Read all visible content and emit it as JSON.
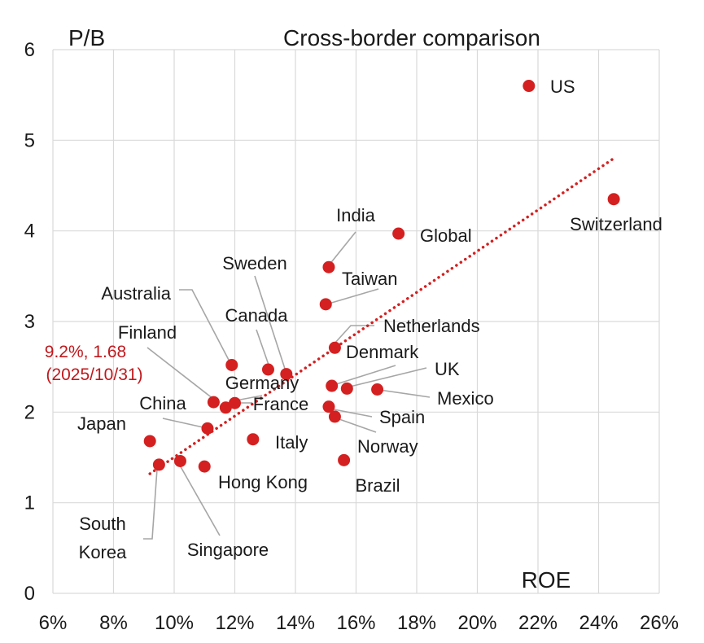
{
  "chart_data": {
    "type": "scatter",
    "title": "Cross-border comparison",
    "xlabel": "ROE",
    "ylabel": "P/B",
    "xlim": [
      0.06,
      0.26
    ],
    "ylim": [
      0,
      6
    ],
    "x_ticks": [
      {
        "value": 0.06,
        "label": "6%"
      },
      {
        "value": 0.08,
        "label": "8%"
      },
      {
        "value": 0.1,
        "label": "10%"
      },
      {
        "value": 0.12,
        "label": "12%"
      },
      {
        "value": 0.14,
        "label": "14%"
      },
      {
        "value": 0.16,
        "label": "16%"
      },
      {
        "value": 0.18,
        "label": "18%"
      },
      {
        "value": 0.2,
        "label": "20%"
      },
      {
        "value": 0.22,
        "label": "22%"
      },
      {
        "value": 0.24,
        "label": "24%"
      },
      {
        "value": 0.26,
        "label": "26%"
      }
    ],
    "y_ticks": [
      {
        "value": 0,
        "label": "0"
      },
      {
        "value": 1,
        "label": "1"
      },
      {
        "value": 2,
        "label": "2"
      },
      {
        "value": 3,
        "label": "3"
      },
      {
        "value": 4,
        "label": "4"
      },
      {
        "value": 5,
        "label": "5"
      },
      {
        "value": 6,
        "label": "6"
      }
    ],
    "grid": true,
    "point_color": "#d42020",
    "trendline": {
      "style": "dotted",
      "color": "#d42020",
      "x": [
        0.092,
        0.245
      ],
      "y": [
        1.32,
        4.8
      ]
    },
    "points": [
      {
        "name": "US",
        "x": 0.217,
        "y": 5.6
      },
      {
        "name": "Switzerland",
        "x": 0.245,
        "y": 4.35
      },
      {
        "name": "Global",
        "x": 0.174,
        "y": 3.97
      },
      {
        "name": "India",
        "x": 0.151,
        "y": 3.6
      },
      {
        "name": "Taiwan",
        "x": 0.15,
        "y": 3.19
      },
      {
        "name": "Netherlands",
        "x": 0.153,
        "y": 2.71
      },
      {
        "name": "Australia",
        "x": 0.119,
        "y": 2.52
      },
      {
        "name": "Sweden",
        "x": 0.137,
        "y": 2.42
      },
      {
        "name": "Canada",
        "x": 0.131,
        "y": 2.47
      },
      {
        "name": "Denmark",
        "x": 0.152,
        "y": 2.29
      },
      {
        "name": "UK",
        "x": 0.157,
        "y": 2.26
      },
      {
        "name": "Mexico",
        "x": 0.167,
        "y": 2.25
      },
      {
        "name": "Finland",
        "x": 0.113,
        "y": 2.11
      },
      {
        "name": "Germany",
        "x": 0.12,
        "y": 2.1
      },
      {
        "name": "France",
        "x": 0.117,
        "y": 2.05
      },
      {
        "name": "Spain",
        "x": 0.151,
        "y": 2.06
      },
      {
        "name": "Norway",
        "x": 0.153,
        "y": 1.95
      },
      {
        "name": "China",
        "x": 0.111,
        "y": 1.82
      },
      {
        "name": "Italy",
        "x": 0.126,
        "y": 1.7
      },
      {
        "name": "Japan",
        "x": 0.092,
        "y": 1.68
      },
      {
        "name": "Brazil",
        "x": 0.156,
        "y": 1.47
      },
      {
        "name": "Singapore",
        "x": 0.102,
        "y": 1.46
      },
      {
        "name": "Hong Kong",
        "x": 0.11,
        "y": 1.4
      },
      {
        "name": "South Korea",
        "x": 0.095,
        "y": 1.42
      }
    ],
    "annotation": {
      "line1": "9.2%, 1.68",
      "line2": "(2025/10/31)",
      "color": "#c0181c"
    }
  }
}
